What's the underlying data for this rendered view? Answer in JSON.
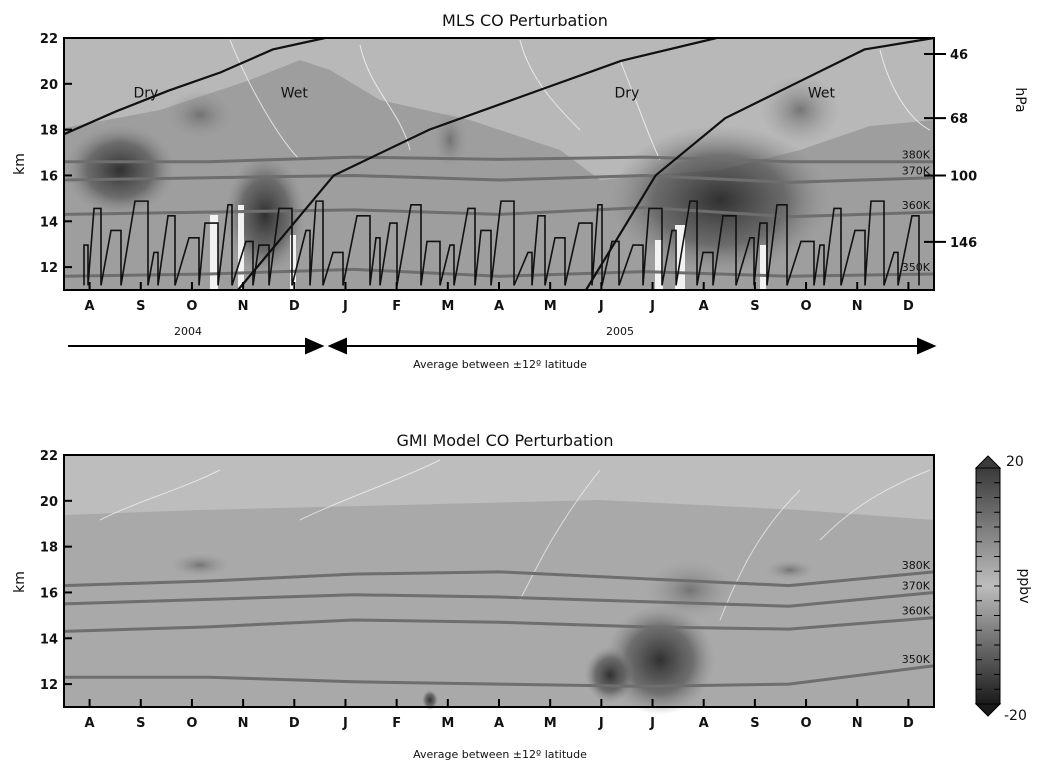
{
  "chart_data": [
    {
      "type": "heatmap",
      "title": "MLS CO Perturbation",
      "ylabel": "km",
      "ylim": [
        11,
        22
      ],
      "yticks": [
        "12",
        "14",
        "16",
        "18",
        "20",
        "22"
      ],
      "xticks": [
        "A",
        "S",
        "O",
        "N",
        "D",
        "J",
        "F",
        "M",
        "A",
        "M",
        "J",
        "J",
        "A",
        "S",
        "O",
        "N",
        "D"
      ],
      "right_axis": {
        "label": "hPa",
        "ticks": [
          {
            "label": "46",
            "km": 21.3
          },
          {
            "label": "68",
            "km": 18.5
          },
          {
            "label": "100",
            "km": 16.0
          },
          {
            "label": "146",
            "km": 13.1
          }
        ]
      },
      "isentropes": [
        {
          "label": "380K",
          "km": [
            16.6,
            16.6,
            16.8,
            16.7,
            16.8,
            16.6,
            16.6
          ]
        },
        {
          "label": "370K",
          "km": [
            15.8,
            15.9,
            16.0,
            15.8,
            16.0,
            15.7,
            15.9
          ]
        },
        {
          "label": "360K",
          "km": [
            14.3,
            14.4,
            14.5,
            14.3,
            14.6,
            14.2,
            14.4
          ]
        },
        {
          "label": "350K",
          "km": [
            11.6,
            11.7,
            11.9,
            11.6,
            11.8,
            11.6,
            11.7
          ]
        }
      ],
      "tape_boundary_km": [
        17.8,
        18.8,
        19.7,
        20.5,
        21.5,
        22.0
      ],
      "tape_boundary_2_km": [
        11.0,
        16.0,
        18.0,
        19.5,
        21.0,
        22.0
      ],
      "tape_boundary_3_km": [
        11.0,
        16.0,
        18.5,
        20.0,
        21.5,
        22.0
      ],
      "annotations": [
        {
          "text": "Dry",
          "x": 1.1,
          "km": 19.4
        },
        {
          "text": "Wet",
          "x": 4.0,
          "km": 19.4
        },
        {
          "text": "Dry",
          "x": 10.5,
          "km": 19.4
        },
        {
          "text": "Wet",
          "x": 14.3,
          "km": 19.4
        }
      ],
      "year_labels": [
        "2004",
        "2005"
      ],
      "caption": "Average between ±12º latitude"
    },
    {
      "type": "heatmap",
      "title": "GMI Model CO Perturbation",
      "ylabel": "km",
      "ylim": [
        11,
        22
      ],
      "yticks": [
        "12",
        "14",
        "16",
        "18",
        "20",
        "22"
      ],
      "xticks": [
        "A",
        "S",
        "O",
        "N",
        "D",
        "J",
        "F",
        "M",
        "A",
        "M",
        "J",
        "J",
        "A",
        "S",
        "O",
        "N",
        "D"
      ],
      "isentropes": [
        {
          "label": "380K",
          "km": [
            16.3,
            16.5,
            16.8,
            16.9,
            16.6,
            16.3,
            16.9
          ]
        },
        {
          "label": "370K",
          "km": [
            15.5,
            15.7,
            15.9,
            15.8,
            15.6,
            15.4,
            16.0
          ]
        },
        {
          "label": "360K",
          "km": [
            14.3,
            14.5,
            14.8,
            14.7,
            14.5,
            14.4,
            14.9
          ]
        },
        {
          "label": "350K",
          "km": [
            12.3,
            12.3,
            12.1,
            12.0,
            11.9,
            12.0,
            12.8
          ]
        }
      ],
      "colorbar": {
        "label": "ppbv",
        "min": "-20",
        "max": "20"
      },
      "caption": "Average between ±12º latitude"
    }
  ]
}
